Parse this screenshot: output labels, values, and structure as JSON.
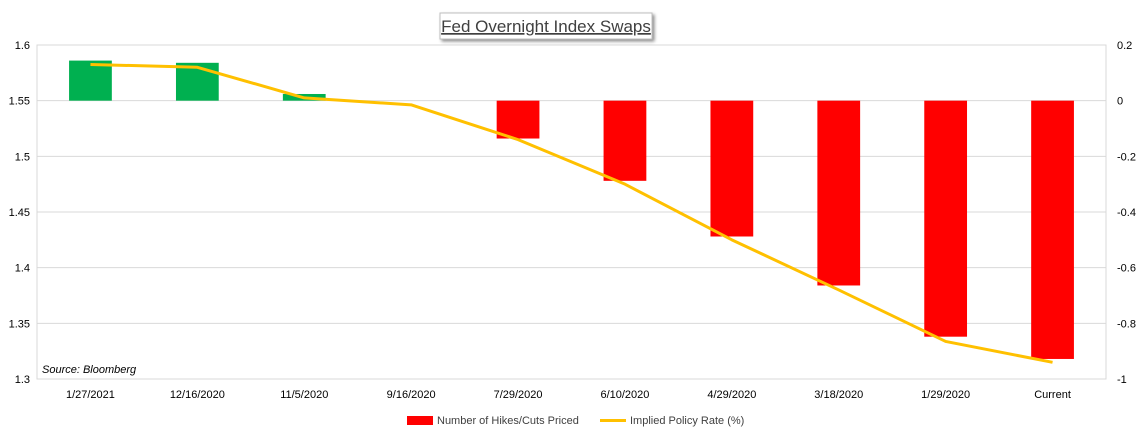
{
  "chart_data": {
    "type": "bar",
    "title": "Fed Overnight Index Swaps",
    "source": "Source: Bloomberg",
    "categories": [
      "1/27/2021",
      "12/16/2020",
      "11/5/2020",
      "9/16/2020",
      "7/29/2020",
      "6/10/2020",
      "4/29/2020",
      "3/18/2020",
      "1/29/2020",
      "Current"
    ],
    "series": [
      {
        "name": "Number of Hikes/Cuts Priced",
        "type": "bar",
        "axis": "left",
        "values": [
          1.586,
          1.584,
          1.556,
          1.55,
          1.516,
          1.478,
          1.428,
          1.384,
          1.338,
          1.318
        ]
      },
      {
        "name": "Implied Policy Rate (%)",
        "type": "line",
        "axis": "right",
        "values": [
          0.13,
          0.12,
          0.01,
          -0.015,
          -0.14,
          -0.3,
          -0.5,
          -0.68,
          -0.865,
          -0.94
        ]
      }
    ],
    "y_left": {
      "min": 1.3,
      "max": 1.6,
      "baseline": 1.55,
      "ticks": [
        "1.6",
        "1.55",
        "1.5",
        "1.45",
        "1.4",
        "1.35",
        "1.3"
      ]
    },
    "y_right": {
      "min": -1,
      "max": 0.2,
      "ticks": [
        "0.2",
        "0",
        "-0.2",
        "-0.4",
        "-0.6",
        "-0.8",
        "-1"
      ]
    },
    "colors": {
      "positive_bar": "#00b050",
      "negative_bar": "#ff0000",
      "line": "#ffc000",
      "grid": "#d9d9d9"
    },
    "grid": true,
    "legend_position": "bottom"
  }
}
